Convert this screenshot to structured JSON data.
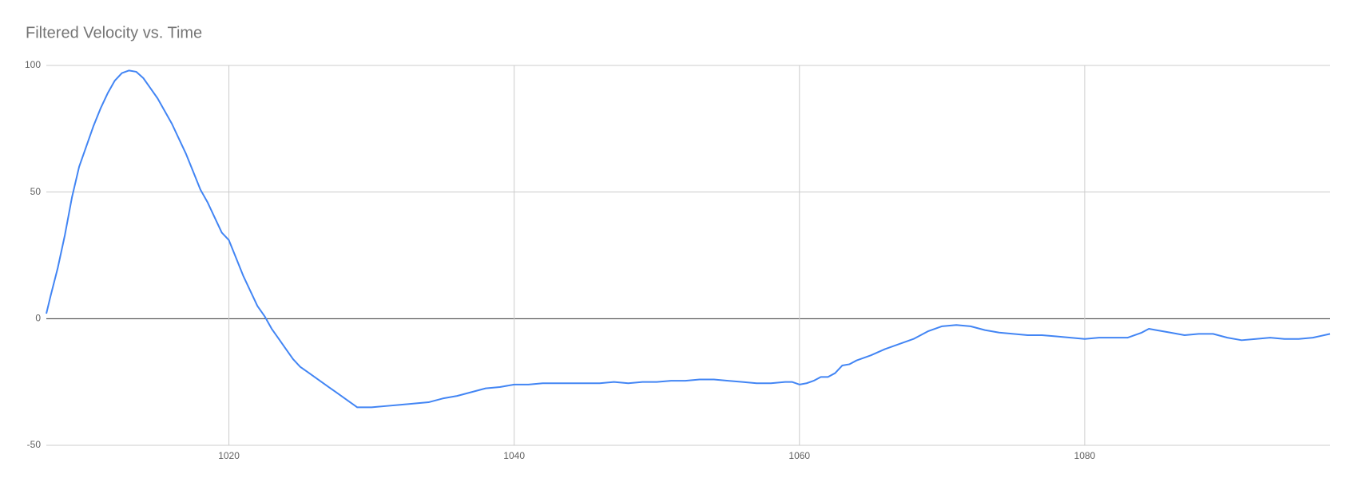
{
  "chart_data": {
    "type": "line",
    "title": "Filtered Velocity vs. Time",
    "x": [
      1007.2,
      1007.5,
      1008,
      1008.5,
      1009,
      1009.5,
      1010,
      1010.5,
      1011,
      1011.5,
      1012,
      1012.5,
      1013,
      1013.5,
      1014,
      1014.5,
      1015,
      1015.5,
      1016,
      1016.5,
      1017,
      1017.5,
      1018,
      1018.5,
      1019,
      1019.5,
      1020,
      1020.5,
      1021,
      1021.5,
      1022,
      1022.5,
      1023,
      1023.5,
      1024,
      1024.5,
      1025,
      1025.5,
      1026,
      1026.5,
      1027,
      1027.5,
      1028,
      1028.5,
      1029,
      1029.5,
      1030,
      1031,
      1032,
      1033,
      1034,
      1035,
      1036,
      1037,
      1038,
      1039,
      1040,
      1041,
      1042,
      1043,
      1044,
      1045,
      1046,
      1047,
      1048,
      1049,
      1050,
      1051,
      1052,
      1053,
      1054,
      1055,
      1056,
      1057,
      1058,
      1059,
      1059.5,
      1060,
      1060.5,
      1061,
      1061.5,
      1062,
      1062.5,
      1063,
      1063.5,
      1064,
      1065,
      1066,
      1067,
      1068,
      1069,
      1070,
      1071,
      1072,
      1073,
      1074,
      1075,
      1076,
      1077,
      1078,
      1079,
      1080,
      1081,
      1082,
      1083,
      1084,
      1084.5,
      1085,
      1086,
      1087,
      1088,
      1089,
      1090,
      1091,
      1092,
      1093,
      1094,
      1095,
      1096,
      1097.2
    ],
    "values": [
      2,
      9,
      20,
      33,
      48,
      60,
      68,
      76,
      83,
      89,
      94,
      97,
      98,
      97.5,
      95,
      91,
      87,
      82,
      77,
      71,
      65,
      58,
      51,
      46,
      40,
      34,
      31,
      24,
      17,
      11,
      5,
      1,
      -4,
      -8,
      -12,
      -16,
      -19,
      -21,
      -23,
      -25,
      -27,
      -29,
      -31,
      -33,
      -35,
      -35,
      -35,
      -34.5,
      -34,
      -33.5,
      -33,
      -31.5,
      -30.5,
      -29,
      -27.5,
      -27,
      -26,
      -26,
      -25.5,
      -25.5,
      -25.5,
      -25.5,
      -25.5,
      -25,
      -25.5,
      -25,
      -25,
      -24.5,
      -24.5,
      -24,
      -24,
      -24.5,
      -25,
      -25.5,
      -25.5,
      -25,
      -25,
      -26,
      -25.5,
      -24.5,
      -23,
      -23,
      -21.5,
      -18.5,
      -18,
      -16.5,
      -14.5,
      -12,
      -10,
      -8,
      -5,
      -3,
      -2.5,
      -3,
      -4.5,
      -5.5,
      -6,
      -6.5,
      -6.5,
      -7,
      -7.5,
      -8,
      -7.5,
      -7.5,
      -7.5,
      -5.5,
      -4,
      -4.5,
      -5.5,
      -6.5,
      -6,
      -6,
      -7.5,
      -8.5,
      -8,
      -7.5,
      -8,
      -8,
      -7.5,
      -6
    ],
    "color": "#4285f4",
    "xlim": [
      1007.2,
      1097.2
    ],
    "xticks": [
      1020,
      1040,
      1060,
      1080
    ],
    "ylim": [
      -50,
      100
    ],
    "yticks": [
      -50,
      0,
      50,
      100
    ],
    "grid": true
  }
}
